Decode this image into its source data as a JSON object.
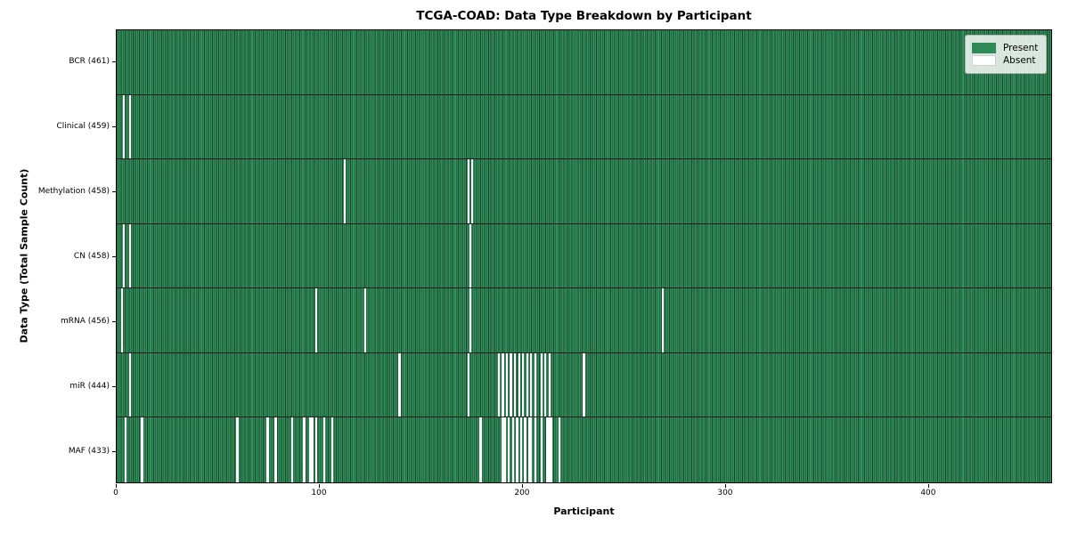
{
  "title": "TCGA-COAD: Data Type Breakdown by Participant",
  "xlabel": "Participant",
  "ylabel": "Data Type (Total Sample Count)",
  "legend": {
    "present_label": "Present",
    "absent_label": "Absent"
  },
  "colors": {
    "present": "#2e8a57",
    "present_edge": "#17482c",
    "absent": "#ffffff",
    "legend_background": "#e9ede9"
  },
  "chart_data": {
    "type": "heatmap",
    "title": "TCGA-COAD: Data Type Breakdown by Participant",
    "xlabel": "Participant",
    "ylabel": "Data Type (Total Sample Count)",
    "legend_entries": [
      "Present",
      "Absent"
    ],
    "legend_position": "upper right",
    "n_participants": 461,
    "x_ticks": [
      0,
      100,
      200,
      300,
      400
    ],
    "grid": false,
    "rows": [
      {
        "label": "BCR (461)",
        "total": 461,
        "absent_participants": []
      },
      {
        "label": "Clinical (459)",
        "total": 459,
        "absent_participants": [
          3,
          6
        ]
      },
      {
        "label": "Methylation (458)",
        "total": 458,
        "absent_participants": [
          112,
          173,
          175
        ]
      },
      {
        "label": "CN (458)",
        "total": 458,
        "absent_participants": [
          3,
          6,
          174
        ]
      },
      {
        "label": "mRNA (456)",
        "total": 456,
        "absent_participants": [
          2,
          98,
          122,
          174,
          269
        ]
      },
      {
        "label": "miR (444)",
        "total": 444,
        "absent_participants": [
          6,
          139,
          173,
          188,
          190,
          192,
          194,
          196,
          198,
          200,
          202,
          204,
          206,
          209,
          211,
          213,
          230
        ]
      },
      {
        "label": "MAF (433)",
        "total": 433,
        "absent_participants": [
          4,
          12,
          59,
          74,
          78,
          86,
          92,
          95,
          96,
          98,
          102,
          106,
          179,
          190,
          191,
          193,
          195,
          197,
          199,
          201,
          203,
          204,
          206,
          209,
          212,
          213,
          214,
          218
        ]
      }
    ]
  }
}
